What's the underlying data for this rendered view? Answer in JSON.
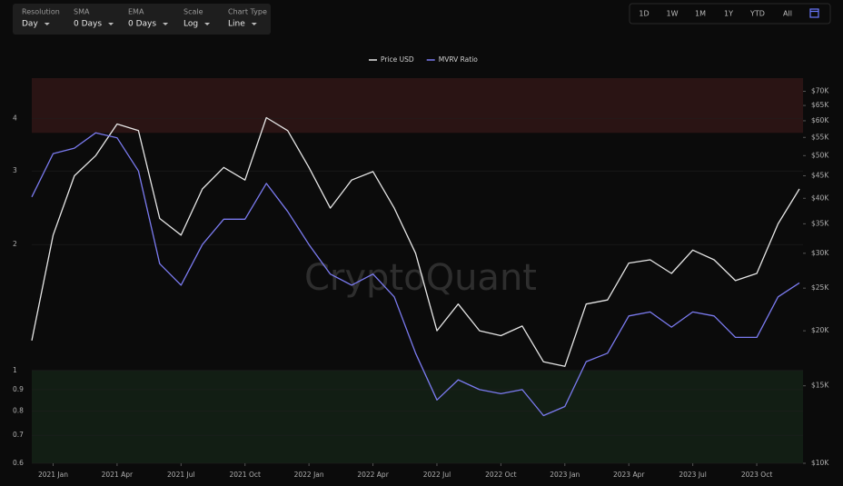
{
  "controls": [
    {
      "label": "Resolution",
      "value": "Day"
    },
    {
      "label": "SMA",
      "value": "0 Days"
    },
    {
      "label": "EMA",
      "value": "0 Days"
    },
    {
      "label": "Scale",
      "value": "Log"
    },
    {
      "label": "Chart Type",
      "value": "Line"
    }
  ],
  "range_buttons": [
    "1D",
    "1W",
    "1M",
    "1Y",
    "YTD",
    "All"
  ],
  "active_range": 5,
  "watermark": "CryptoQuant",
  "chart_data": {
    "type": "line",
    "log_scale": true,
    "grid": true,
    "legend": "top",
    "x": [
      "2020-12",
      "2021-01",
      "2021-02",
      "2021-03",
      "2021-04",
      "2021-05",
      "2021-06",
      "2021-07",
      "2021-08",
      "2021-09",
      "2021-10",
      "2021-11",
      "2021-12",
      "2022-01",
      "2022-02",
      "2022-03",
      "2022-04",
      "2022-05",
      "2022-06",
      "2022-07",
      "2022-08",
      "2022-09",
      "2022-10",
      "2022-11",
      "2022-12",
      "2023-01",
      "2023-02",
      "2023-03",
      "2023-04",
      "2023-05",
      "2023-06",
      "2023-07",
      "2023-08",
      "2023-09",
      "2023-10",
      "2023-11",
      "2023-12"
    ],
    "xlim": [
      "2020-12",
      "2023-12"
    ],
    "xticks": [
      {
        "value": "2021-01",
        "label": "2021 Jan"
      },
      {
        "value": "2021-04",
        "label": "2021 Apr"
      },
      {
        "value": "2021-07",
        "label": "2021 Jul"
      },
      {
        "value": "2021-10",
        "label": "2021 Oct"
      },
      {
        "value": "2022-01",
        "label": "2022 Jan"
      },
      {
        "value": "2022-04",
        "label": "2022 Apr"
      },
      {
        "value": "2022-07",
        "label": "2022 Jul"
      },
      {
        "value": "2022-10",
        "label": "2022 Oct"
      },
      {
        "value": "2023-01",
        "label": "2023 Jan"
      },
      {
        "value": "2023-04",
        "label": "2023 Apr"
      },
      {
        "value": "2023-07",
        "label": "2023 Jul"
      },
      {
        "value": "2023-10",
        "label": "2023 Oct"
      }
    ],
    "ylim": [
      0.6,
      5
    ],
    "yticks": [
      0.6,
      0.7,
      0.8,
      0.9,
      1,
      2,
      3,
      4
    ],
    "y2lim": [
      10000,
      75000
    ],
    "y2ticks": [
      {
        "value": 10000,
        "label": "$10K"
      },
      {
        "value": 15000,
        "label": "$15K"
      },
      {
        "value": 20000,
        "label": "$20K"
      },
      {
        "value": 25000,
        "label": "$25K"
      },
      {
        "value": 30000,
        "label": "$30K"
      },
      {
        "value": 35000,
        "label": "$35K"
      },
      {
        "value": 40000,
        "label": "$40K"
      },
      {
        "value": 45000,
        "label": "$45K"
      },
      {
        "value": 50000,
        "label": "$50K"
      },
      {
        "value": 55000,
        "label": "$55K"
      },
      {
        "value": 60000,
        "label": "$60K"
      },
      {
        "value": 65000,
        "label": "$65K"
      },
      {
        "value": 70000,
        "label": "$70K"
      }
    ],
    "bands": [
      {
        "from": 3.7,
        "to": 5,
        "color": "#2a1414"
      },
      {
        "from": 0.6,
        "to": 1,
        "color": "#121e14"
      }
    ],
    "series": [
      {
        "name": "Price USD",
        "color": "#e6e6e6",
        "axis": "y2",
        "values": [
          19000,
          33000,
          45000,
          50000,
          59000,
          57000,
          36000,
          33000,
          42000,
          47000,
          44000,
          61000,
          57000,
          47000,
          38000,
          44000,
          46000,
          38000,
          30000,
          20000,
          23000,
          20000,
          19500,
          20500,
          17000,
          16600,
          23000,
          23500,
          28500,
          29000,
          27000,
          30500,
          29000,
          26000,
          27000,
          35000,
          42000
        ]
      },
      {
        "name": "MVRV Ratio",
        "color": "#7b7bf0",
        "values": [
          2.6,
          3.3,
          3.4,
          3.7,
          3.6,
          3.0,
          1.8,
          1.6,
          2.0,
          2.3,
          2.3,
          2.8,
          2.4,
          2.0,
          1.7,
          1.6,
          1.7,
          1.5,
          1.1,
          0.85,
          0.95,
          0.9,
          0.88,
          0.9,
          0.78,
          0.82,
          1.05,
          1.1,
          1.35,
          1.38,
          1.27,
          1.38,
          1.35,
          1.2,
          1.2,
          1.5,
          1.62
        ]
      }
    ]
  }
}
